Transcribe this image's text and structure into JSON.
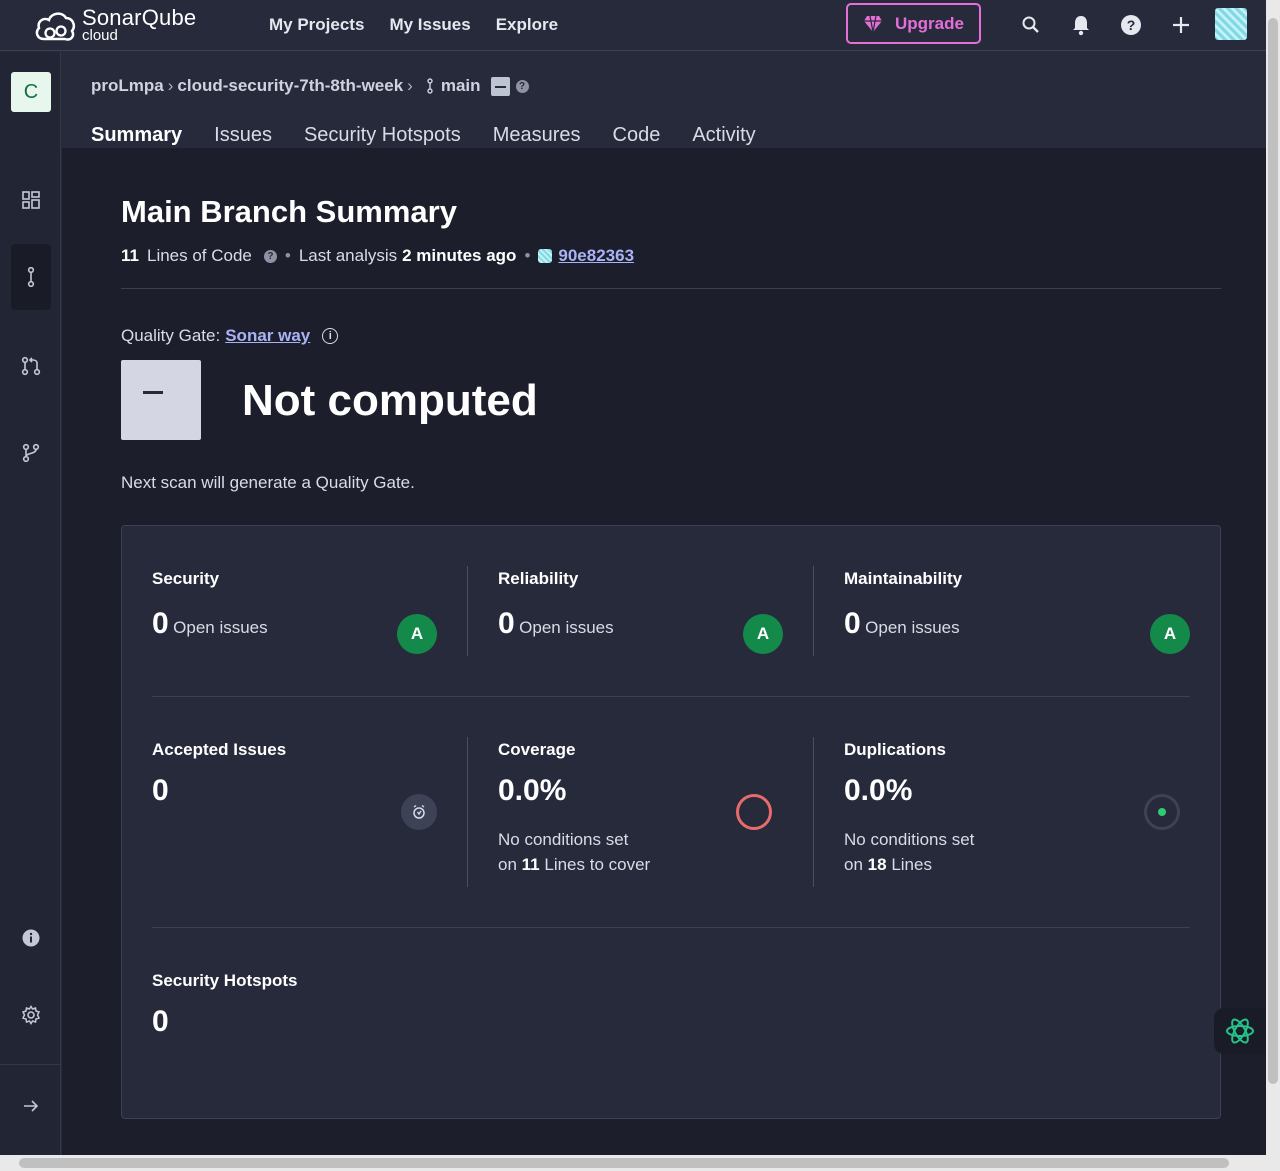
{
  "app": {
    "brand": "SonarQube",
    "brand_sub": "cloud"
  },
  "topnav": [
    "My Projects",
    "My Issues",
    "Explore"
  ],
  "upgrade_label": "Upgrade",
  "colors": {
    "accent": "#a9b2f5",
    "upgrade": "#e46fd7",
    "grade_a": "#138a4a",
    "coverage_ring": "#e86b6b",
    "dup_dot": "#2ecc71"
  },
  "project": {
    "badge": "C",
    "org": "proLmpa",
    "name": "cloud-security-7th-8th-week",
    "branch": "main"
  },
  "tabs": [
    "Summary",
    "Issues",
    "Security Hotspots",
    "Measures",
    "Code",
    "Activity"
  ],
  "summary": {
    "title": "Main Branch Summary",
    "loc_value": "11",
    "loc_label": "Lines of Code",
    "last_analysis_label": "Last analysis",
    "last_analysis_value": "2 minutes ago",
    "commit": "90e82363"
  },
  "quality_gate": {
    "label": "Quality Gate:",
    "name": "Sonar way",
    "status": "Not computed",
    "note": "Next scan will generate a Quality Gate."
  },
  "metrics": {
    "security": {
      "title": "Security",
      "value": "0",
      "sub": "Open issues",
      "grade": "A"
    },
    "reliability": {
      "title": "Reliability",
      "value": "0",
      "sub": "Open issues",
      "grade": "A"
    },
    "maintainability": {
      "title": "Maintainability",
      "value": "0",
      "sub": "Open issues",
      "grade": "A"
    },
    "accepted": {
      "title": "Accepted Issues",
      "value": "0"
    },
    "coverage": {
      "title": "Coverage",
      "value": "0.0%",
      "note1": "No conditions set",
      "note2_pre": "on",
      "note2_num": "11",
      "note2_post": "Lines to cover"
    },
    "duplications": {
      "title": "Duplications",
      "value": "0.0%",
      "note1": "No conditions set",
      "note2_pre": "on",
      "note2_num": "18",
      "note2_post": "Lines"
    },
    "hotspots": {
      "title": "Security Hotspots",
      "value": "0"
    }
  }
}
